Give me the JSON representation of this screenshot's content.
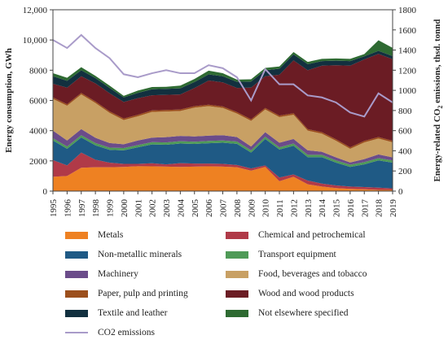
{
  "chart_data": {
    "type": "area",
    "stacked": true,
    "x": [
      1995,
      1996,
      1997,
      1998,
      1999,
      2000,
      2001,
      2002,
      2003,
      2004,
      2005,
      2006,
      2007,
      2008,
      2009,
      2010,
      2011,
      2012,
      2013,
      2014,
      2015,
      2016,
      2017,
      2018,
      2019
    ],
    "ylabel": "Energy consumption, GWh",
    "ylim": [
      0,
      12000
    ],
    "yticks": [
      "0",
      "2000",
      "4000",
      "6000",
      "8000",
      "10,000",
      "12,000"
    ],
    "y2label": "Energy-related CO2 emissions, thsd. tonnd",
    "y2lim": [
      0,
      1800
    ],
    "y2ticks": [
      "0",
      "200",
      "400",
      "600",
      "800",
      "1000",
      "1200",
      "1400",
      "1600",
      "1800"
    ],
    "grid": false,
    "legend_position": "bottom",
    "series": [
      {
        "name": "Metals",
        "color": "#ee8122",
        "values": [
          950,
          1000,
          1550,
          1580,
          1580,
          1600,
          1650,
          1640,
          1620,
          1600,
          1620,
          1640,
          1620,
          1580,
          1350,
          1600,
          650,
          950,
          450,
          300,
          200,
          150,
          120,
          80,
          80
        ]
      },
      {
        "name": "Chemical and petrochemical",
        "color": "#b03a48",
        "values": [
          1100,
          700,
          1000,
          500,
          300,
          200,
          150,
          200,
          150,
          250,
          200,
          180,
          180,
          150,
          150,
          100,
          250,
          150,
          250,
          200,
          180,
          150,
          150,
          150,
          100
        ]
      },
      {
        "name": "Non-metallic minerals",
        "color": "#1f5a85",
        "values": [
          1300,
          1100,
          1000,
          950,
          850,
          900,
          1100,
          1250,
          1300,
          1300,
          1300,
          1350,
          1400,
          1400,
          1050,
          1750,
          1850,
          1900,
          1550,
          1750,
          1500,
          1300,
          1500,
          1800,
          1700
        ]
      },
      {
        "name": "Transport equipment",
        "color": "#4f9a57",
        "values": [
          150,
          150,
          150,
          150,
          150,
          150,
          150,
          150,
          150,
          150,
          150,
          150,
          150,
          150,
          150,
          150,
          150,
          150,
          150,
          150,
          150,
          150,
          150,
          150,
          150
        ]
      },
      {
        "name": "Machinery",
        "color": "#6b4c8a",
        "values": [
          500,
          400,
          400,
          350,
          300,
          250,
          300,
          300,
          350,
          350,
          350,
          350,
          350,
          300,
          250,
          300,
          300,
          300,
          300,
          200,
          200,
          150,
          200,
          250,
          200
        ]
      },
      {
        "name": "Food, beverages and tobacco",
        "color": "#c8a064",
        "values": [
          2100,
          2300,
          2300,
          2300,
          2000,
          1600,
          1600,
          1700,
          1700,
          1650,
          1900,
          1950,
          1800,
          1550,
          1700,
          1500,
          1700,
          1600,
          1300,
          1200,
          1100,
          900,
          1100,
          1050,
          1000
        ]
      },
      {
        "name": "Paper, pulp and printing",
        "color": "#9c4f1c",
        "values": [
          100,
          100,
          100,
          100,
          100,
          100,
          100,
          100,
          100,
          100,
          100,
          100,
          100,
          100,
          100,
          100,
          100,
          100,
          100,
          100,
          100,
          100,
          100,
          100,
          100
        ]
      },
      {
        "name": "Wood and wood products",
        "color": "#6b1c24",
        "values": [
          900,
          1100,
          1100,
          1200,
          1200,
          1100,
          1100,
          1000,
          1000,
          1000,
          1200,
          1600,
          1600,
          1600,
          2100,
          2100,
          2700,
          3500,
          3900,
          4400,
          4900,
          5400,
          5400,
          5500,
          5400
        ]
      },
      {
        "name": "Textile and leather",
        "color": "#12303f",
        "values": [
          500,
          450,
          400,
          350,
          350,
          300,
          350,
          400,
          400,
          400,
          400,
          400,
          400,
          400,
          400,
          400,
          400,
          400,
          400,
          300,
          300,
          300,
          200,
          200,
          200
        ]
      },
      {
        "name": "Not elsewhere specified",
        "color": "#2e6a32",
        "values": [
          200,
          200,
          200,
          150,
          150,
          100,
          150,
          150,
          130,
          180,
          200,
          250,
          200,
          150,
          150,
          150,
          150,
          150,
          150,
          150,
          150,
          150,
          150,
          700,
          550
        ]
      }
    ],
    "line_series": [
      {
        "name": "CO2 emissions",
        "color": "#a99bc9",
        "axis": "right",
        "values": [
          1500,
          1420,
          1550,
          1420,
          1320,
          1160,
          1130,
          1170,
          1200,
          1170,
          1170,
          1250,
          1220,
          1130,
          900,
          1210,
          1060,
          1060,
          950,
          930,
          880,
          780,
          740,
          970,
          880
        ]
      }
    ]
  }
}
